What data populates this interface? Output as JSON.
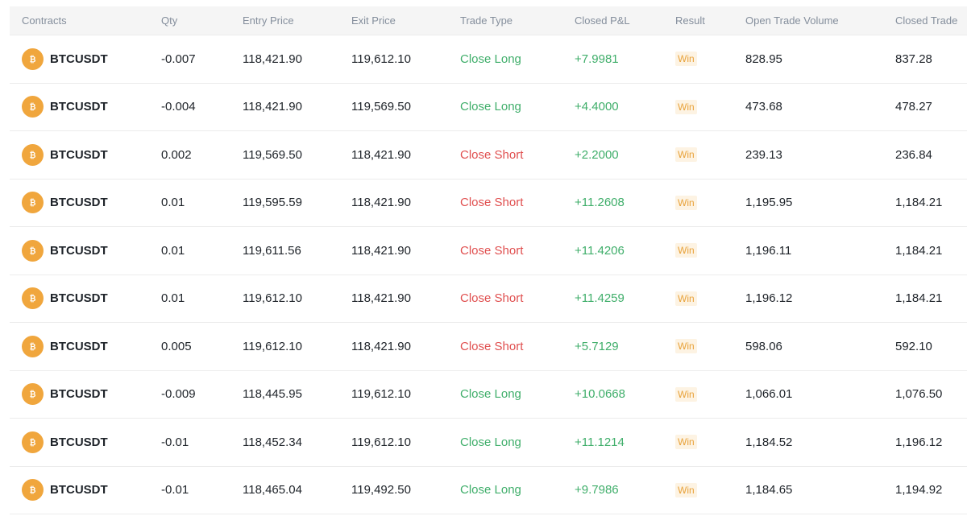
{
  "columns": {
    "contracts": "Contracts",
    "qty": "Qty",
    "entry_price": "Entry Price",
    "exit_price": "Exit Price",
    "trade_type": "Trade Type",
    "closed_pnl": "Closed P&L",
    "result": "Result",
    "open_trade_volume": "Open Trade Volume",
    "closed_trade": "Closed Trade"
  },
  "coin_icon": "bitcoin-icon",
  "colors": {
    "long": "#3fae6a",
    "short": "#e04f4f",
    "win": "#e8a23a",
    "coin": "#f0a63d"
  },
  "rows": [
    {
      "symbol": "BTCUSDT",
      "qty": "-0.007",
      "entry": "118,421.90",
      "exit": "119,612.10",
      "type": "Close Long",
      "side": "long",
      "pnl": "+7.9981",
      "result": "Win",
      "open_vol": "828.95",
      "closed_vol": "837.28"
    },
    {
      "symbol": "BTCUSDT",
      "qty": "-0.004",
      "entry": "118,421.90",
      "exit": "119,569.50",
      "type": "Close Long",
      "side": "long",
      "pnl": "+4.4000",
      "result": "Win",
      "open_vol": "473.68",
      "closed_vol": "478.27"
    },
    {
      "symbol": "BTCUSDT",
      "qty": "0.002",
      "entry": "119,569.50",
      "exit": "118,421.90",
      "type": "Close Short",
      "side": "short",
      "pnl": "+2.2000",
      "result": "Win",
      "open_vol": "239.13",
      "closed_vol": "236.84"
    },
    {
      "symbol": "BTCUSDT",
      "qty": "0.01",
      "entry": "119,595.59",
      "exit": "118,421.90",
      "type": "Close Short",
      "side": "short",
      "pnl": "+11.2608",
      "result": "Win",
      "open_vol": "1,195.95",
      "closed_vol": "1,184.21"
    },
    {
      "symbol": "BTCUSDT",
      "qty": "0.01",
      "entry": "119,611.56",
      "exit": "118,421.90",
      "type": "Close Short",
      "side": "short",
      "pnl": "+11.4206",
      "result": "Win",
      "open_vol": "1,196.11",
      "closed_vol": "1,184.21"
    },
    {
      "symbol": "BTCUSDT",
      "qty": "0.01",
      "entry": "119,612.10",
      "exit": "118,421.90",
      "type": "Close Short",
      "side": "short",
      "pnl": "+11.4259",
      "result": "Win",
      "open_vol": "1,196.12",
      "closed_vol": "1,184.21"
    },
    {
      "symbol": "BTCUSDT",
      "qty": "0.005",
      "entry": "119,612.10",
      "exit": "118,421.90",
      "type": "Close Short",
      "side": "short",
      "pnl": "+5.7129",
      "result": "Win",
      "open_vol": "598.06",
      "closed_vol": "592.10"
    },
    {
      "symbol": "BTCUSDT",
      "qty": "-0.009",
      "entry": "118,445.95",
      "exit": "119,612.10",
      "type": "Close Long",
      "side": "long",
      "pnl": "+10.0668",
      "result": "Win",
      "open_vol": "1,066.01",
      "closed_vol": "1,076.50"
    },
    {
      "symbol": "BTCUSDT",
      "qty": "-0.01",
      "entry": "118,452.34",
      "exit": "119,612.10",
      "type": "Close Long",
      "side": "long",
      "pnl": "+11.1214",
      "result": "Win",
      "open_vol": "1,184.52",
      "closed_vol": "1,196.12"
    },
    {
      "symbol": "BTCUSDT",
      "qty": "-0.01",
      "entry": "118,465.04",
      "exit": "119,492.50",
      "type": "Close Long",
      "side": "long",
      "pnl": "+9.7986",
      "result": "Win",
      "open_vol": "1,184.65",
      "closed_vol": "1,194.92"
    }
  ]
}
